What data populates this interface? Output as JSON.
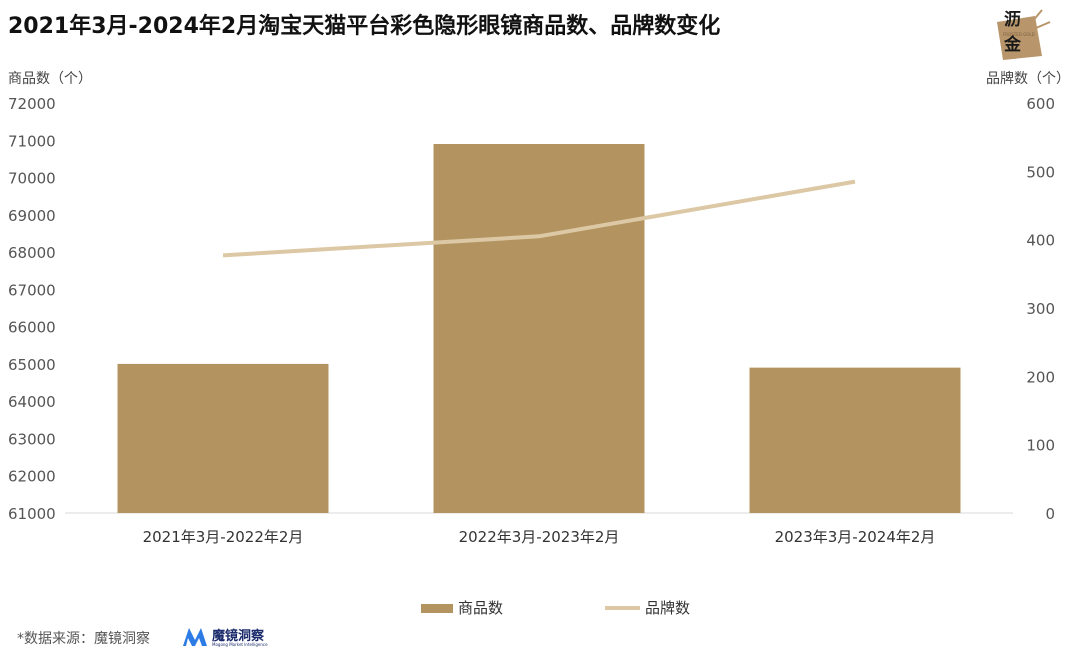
{
  "title": "2021年3月-2024年2月淘宝天猫平台彩色隐形眼镜商品数、品牌数变化",
  "logo": {
    "char_top": "沥",
    "char_bottom": "金",
    "tagline": "FROSTED GOLD",
    "color": "#b8956a"
  },
  "source_label": "*数据来源：魔镜洞察",
  "brand": {
    "name": "魔镜洞察",
    "tagline": "Mogong Market Intelligence",
    "color": "#1b2b6b",
    "accent": "#2d7be5"
  },
  "chart_data": {
    "type": "bar+line",
    "categories": [
      "2021年3月-2022年2月",
      "2022年3月-2023年2月",
      "2023年3月-2024年2月"
    ],
    "series": [
      {
        "name": "商品数",
        "type": "bar",
        "axis": "left",
        "color": "#b39461",
        "values": [
          65000,
          70900,
          64900
        ]
      },
      {
        "name": "品牌数",
        "type": "line",
        "axis": "right",
        "color": "#dcc8a4",
        "values": [
          377,
          405,
          485
        ]
      }
    ],
    "left_axis": {
      "label": "商品数（个）",
      "min": 61000,
      "max": 72000,
      "step": 1000
    },
    "right_axis": {
      "label": "品牌数（个）",
      "min": 0,
      "max": 600,
      "step": 100
    },
    "legend_position": "bottom-center",
    "grid": false
  }
}
